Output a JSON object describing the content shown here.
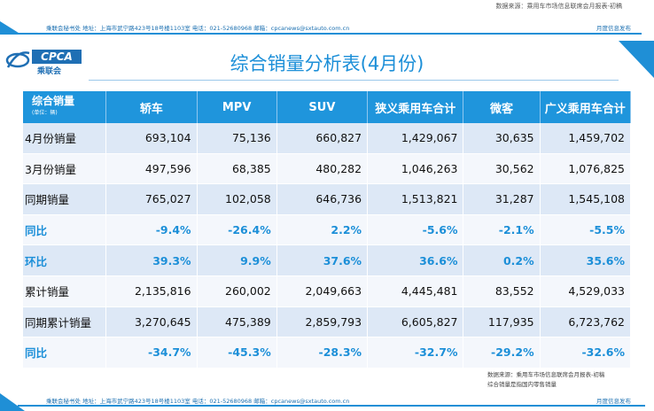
{
  "source_top": "数据来源：乘用车市场信息联席会月报表-初稿",
  "header_bar": {
    "left": "乘联会秘书处   地址：上海市武宁路423号18号楼1103室   电话：021-52680968   邮箱：cpcanews@sxtauto.com.cn",
    "right": "月度信息发布"
  },
  "logo": {
    "en": "CPCA",
    "cn": "乘联会"
  },
  "title": "综合销量分析表(4月份)",
  "table": {
    "corner_label": "综合销量",
    "corner_unit": "(单位：辆)",
    "columns": [
      "轿车",
      "MPV",
      "SUV",
      "狭义乘用车合计",
      "微客",
      "广义乘用车合计"
    ],
    "rows": [
      {
        "label": "4月份销量",
        "values": [
          "693,104",
          "75,136",
          "660,827",
          "1,429,067",
          "30,635",
          "1,459,702"
        ]
      },
      {
        "label": "3月份销量",
        "values": [
          "497,596",
          "68,385",
          "480,282",
          "1,046,263",
          "30,562",
          "1,076,825"
        ]
      },
      {
        "label": "同期销量",
        "values": [
          "765,027",
          "102,058",
          "646,736",
          "1,513,821",
          "31,287",
          "1,545,108"
        ]
      },
      {
        "label": "同比",
        "values": [
          "-9.4%",
          "-26.4%",
          "2.2%",
          "-5.6%",
          "-2.1%",
          "-5.5%"
        ]
      },
      {
        "label": "环比",
        "values": [
          "39.3%",
          "9.9%",
          "37.6%",
          "36.6%",
          "0.2%",
          "35.6%"
        ]
      },
      {
        "label": "累计销量",
        "values": [
          "2,135,816",
          "260,002",
          "2,049,663",
          "4,445,481",
          "83,552",
          "4,529,033"
        ]
      },
      {
        "label": "同期累计销量",
        "values": [
          "3,270,645",
          "475,389",
          "2,859,793",
          "6,605,827",
          "117,935",
          "6,723,762"
        ]
      },
      {
        "label": "同比",
        "values": [
          "-34.7%",
          "-45.3%",
          "-28.3%",
          "-32.7%",
          "-29.2%",
          "-32.6%"
        ]
      }
    ]
  },
  "note": {
    "line1": "数据来源：乘用车市场信息联席会月报表-初稿",
    "line2": "综合销量是指国内零售销量"
  },
  "footer_bar": {
    "left": "乘联会秘书处   地址：上海市武宁路423号18号楼1103室   电话：021-52680968   邮箱：cpcanews@sxtauto.com.cn",
    "right": "月度信息发布"
  },
  "colors": {
    "accent": "#1f95dc",
    "row_shade": "#dde8f6",
    "pct_text": "#1c8fd8"
  }
}
